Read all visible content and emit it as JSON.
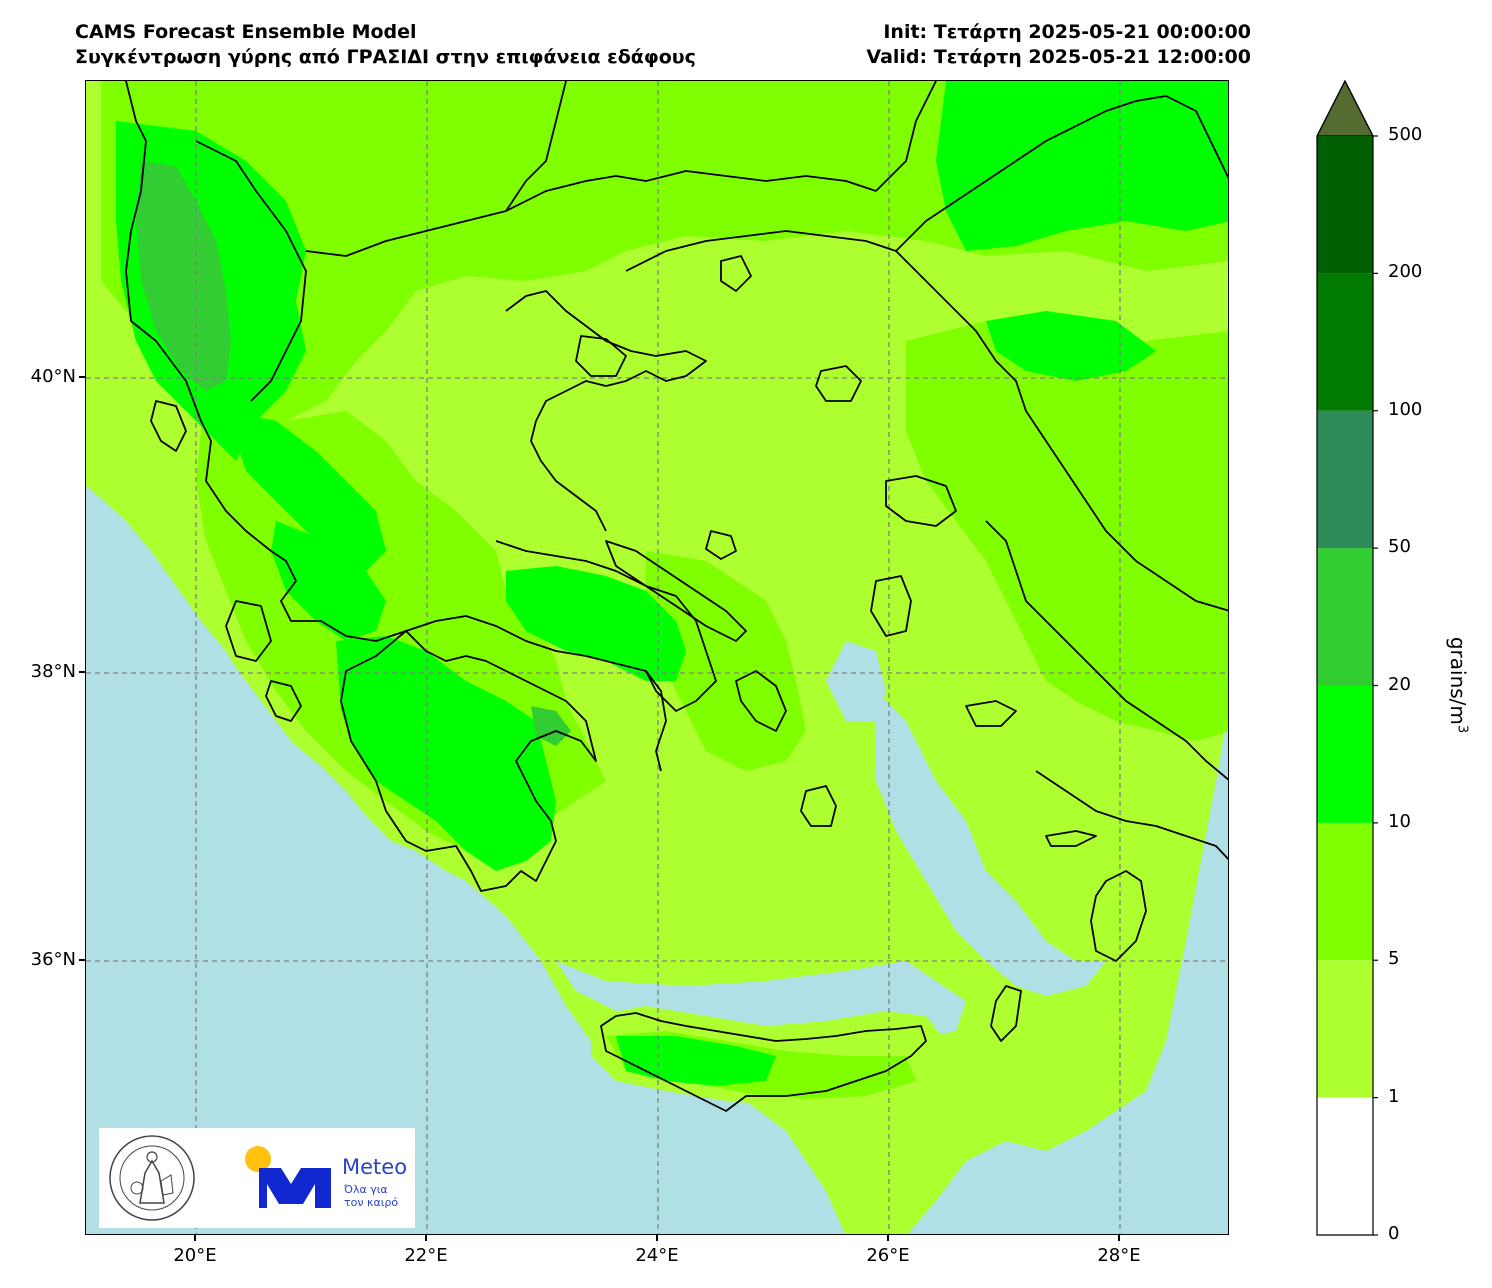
{
  "header": {
    "title_line1": "CAMS Forecast Ensemble Model",
    "title_line2": "Συγκέντρωση γύρης από ΓΡΑΣΙΔΙ στην επιφάνεια εδάφους",
    "init_line": "Init: Τετάρτη 2025-05-21 00:00:00",
    "valid_line": "Valid: Τετάρτη 2025-05-21 12:00:00"
  },
  "map": {
    "lon_range": [
      19.0,
      28.9
    ],
    "lat_range": [
      34.2,
      41.8
    ],
    "x_ticks": [
      "20°E",
      "22°E",
      "24°E",
      "26°E",
      "28°E"
    ],
    "x_tick_values": [
      20,
      22,
      24,
      26,
      28
    ],
    "y_ticks": [
      "40°N",
      "38°N",
      "36°N"
    ],
    "y_tick_values": [
      40,
      38,
      36
    ],
    "gridlines": "dashed grey",
    "sea_color": "#b0dfe6",
    "coast_color": "#000000"
  },
  "colorbar": {
    "title": "grains/m",
    "title_superscript": "3",
    "labels": [
      "0",
      "1",
      "5",
      "10",
      "20",
      "50",
      "100",
      "200",
      "500"
    ],
    "colors": [
      "#ffffff",
      "#adff2f",
      "#7fff00",
      "#00ff00",
      "#32cd32",
      "#2e8b57",
      "#007a00",
      "#005f00"
    ],
    "extend_color": "#556b2f"
  },
  "logos": {
    "observatory_seal": "National Observatory of Athens seal",
    "meteo_brand": "Meteo",
    "meteo_slogan_line1": "Όλα για",
    "meteo_slogan_line2": "τον καιρό",
    "meteo_blue": "#1127cf",
    "meteo_sun": "#ffc20e"
  }
}
